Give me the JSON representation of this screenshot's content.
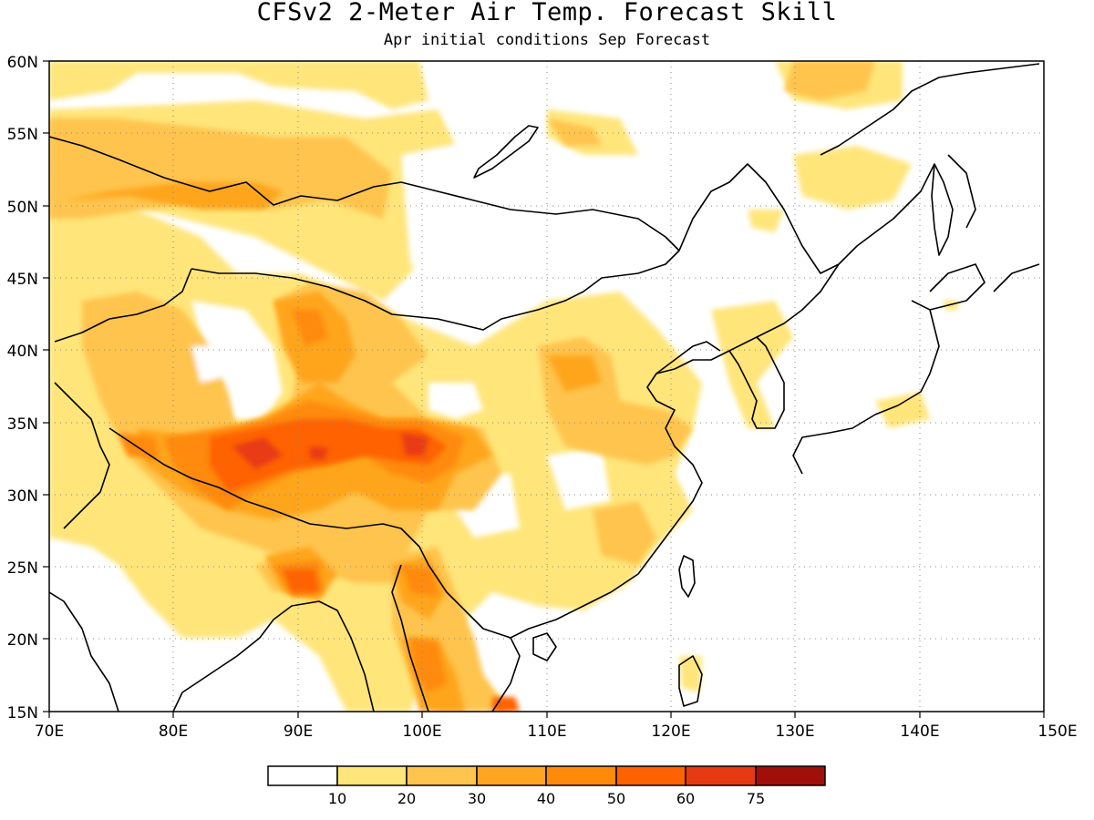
{
  "title": "CFSv2 2-Meter Air Temp. Forecast Skill",
  "subtitle": "Apr initial conditions  Sep Forecast",
  "map": {
    "lon_range": [
      70,
      150
    ],
    "lat_range": [
      15,
      60
    ],
    "lon_ticks": [
      "70E",
      "80E",
      "90E",
      "100E",
      "110E",
      "120E",
      "130E",
      "140E",
      "150E"
    ],
    "lat_ticks": [
      "60N",
      "55N",
      "50N",
      "45N",
      "40N",
      "35N",
      "30N",
      "25N",
      "20N",
      "15N"
    ],
    "gridlines": "dotted"
  },
  "legend": {
    "levels": [
      "10",
      "20",
      "30",
      "40",
      "50",
      "60",
      "75"
    ],
    "colors": [
      "#ffffff",
      "#ffe57a",
      "#ffc44d",
      "#ffa51f",
      "#ff8a0a",
      "#ff6200",
      "#e83a12",
      "#a01008"
    ]
  }
}
